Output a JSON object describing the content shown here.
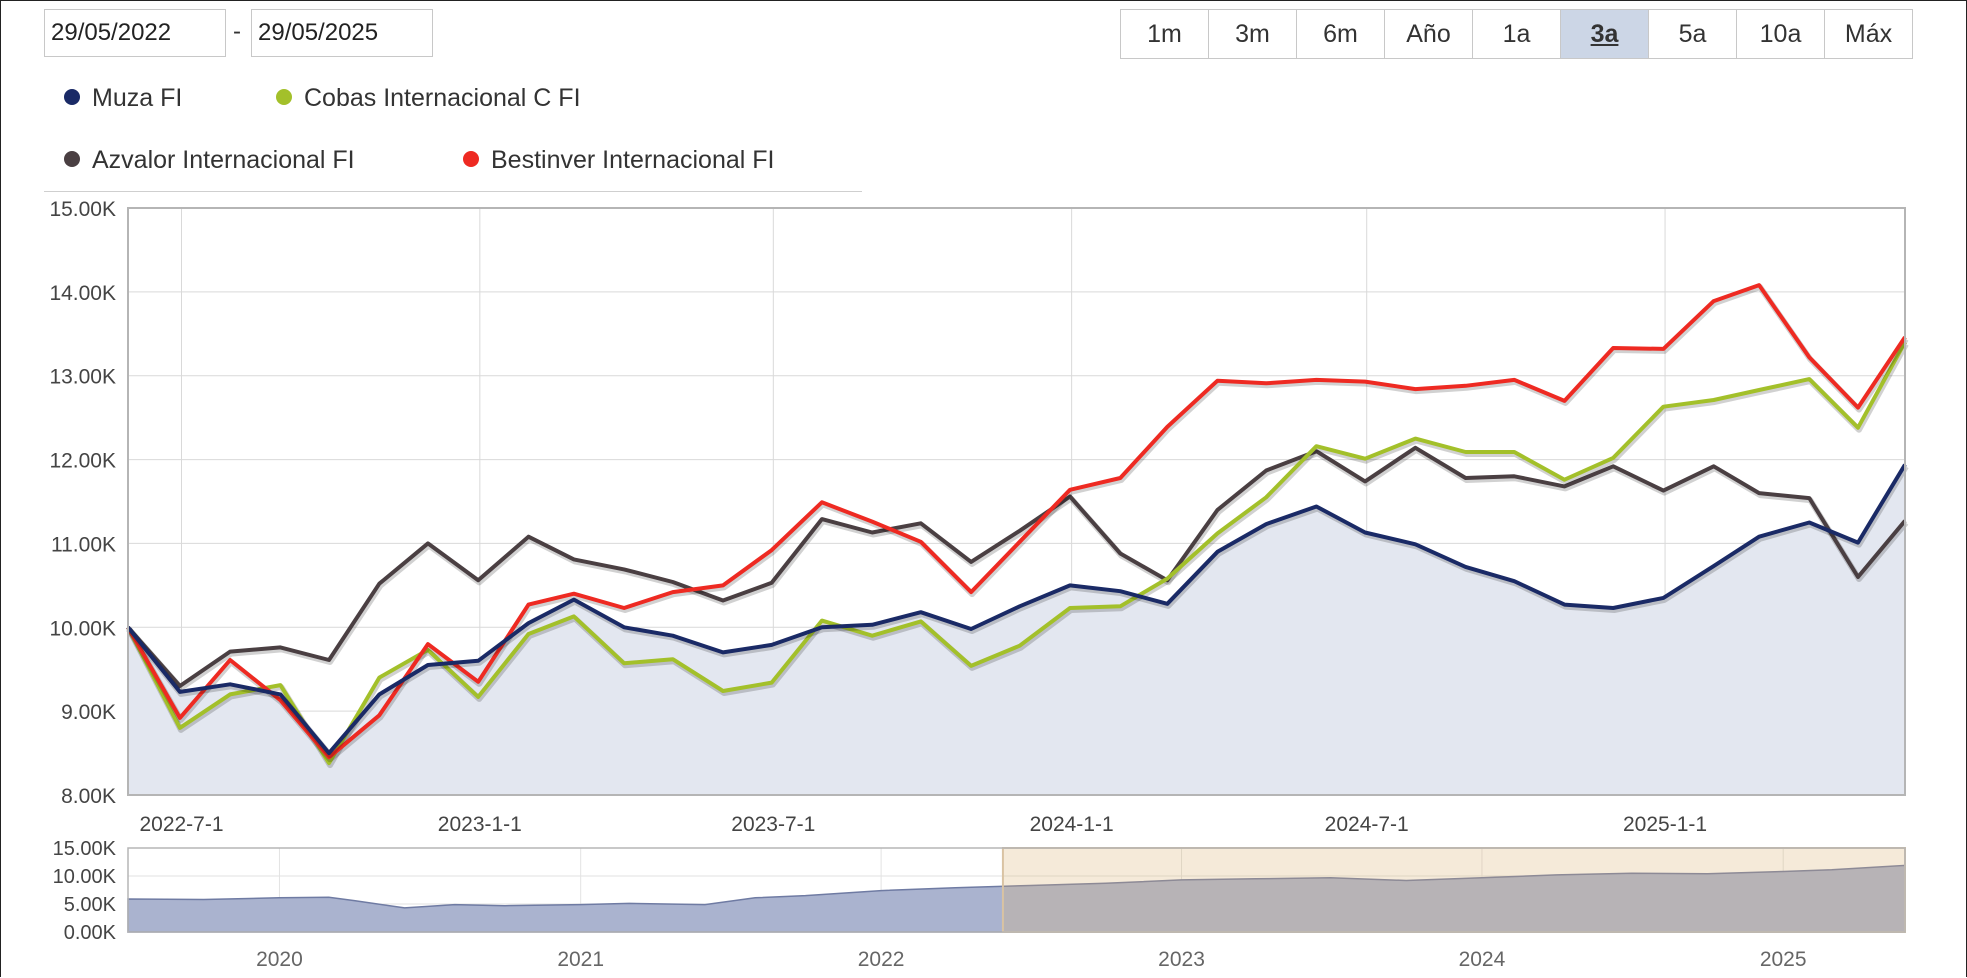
{
  "date_range": {
    "from": "29/05/2022",
    "separator": "-",
    "to": "29/05/2025"
  },
  "range_buttons": [
    {
      "label": "1m",
      "active": false
    },
    {
      "label": "3m",
      "active": false
    },
    {
      "label": "6m",
      "active": false
    },
    {
      "label": "Año",
      "active": false
    },
    {
      "label": "1a",
      "active": false
    },
    {
      "label": "3a",
      "active": true
    },
    {
      "label": "5a",
      "active": false
    },
    {
      "label": "10a",
      "active": false
    },
    {
      "label": "Máx",
      "active": false
    }
  ],
  "legend": [
    {
      "name": "Muza FI",
      "color": "#1a2a66"
    },
    {
      "name": "Cobas Internacional C FI",
      "color": "#a3c02a"
    },
    {
      "name": "Azvalor Internacional FI",
      "color": "#4a3f42"
    },
    {
      "name": "Bestinver Internacional FI",
      "color": "#ee2a22"
    }
  ],
  "chart_data": [
    {
      "type": "line",
      "title": "",
      "x_start": "2022-05-29",
      "x_end": "2025-05-29",
      "ylim": [
        8000,
        15000
      ],
      "y_ticks": [
        "8.00K",
        "9.00K",
        "10.00K",
        "11.00K",
        "12.00K",
        "13.00K",
        "14.00K",
        "15.00K"
      ],
      "x_ticks": [
        {
          "label": "2022-7-1",
          "date": "2022-07-01"
        },
        {
          "label": "2023-1-1",
          "date": "2023-01-01"
        },
        {
          "label": "2023-7-1",
          "date": "2023-07-01"
        },
        {
          "label": "2024-1-1",
          "date": "2024-01-01"
        },
        {
          "label": "2024-7-1",
          "date": "2024-07-01"
        },
        {
          "label": "2025-1-1",
          "date": "2025-01-01"
        }
      ],
      "grid": true,
      "area_fill_series": "Muza FI",
      "series": [
        {
          "name": "Muza FI",
          "color": "#1a2a66",
          "points": [
            [
              "2022-05-29",
              10000
            ],
            [
              "2022-06-30",
              9230
            ],
            [
              "2022-07-31",
              9320
            ],
            [
              "2022-08-31",
              9200
            ],
            [
              "2022-09-30",
              8500
            ],
            [
              "2022-10-31",
              9200
            ],
            [
              "2022-11-30",
              9550
            ],
            [
              "2022-12-31",
              9600
            ],
            [
              "2023-01-31",
              10050
            ],
            [
              "2023-02-28",
              10330
            ],
            [
              "2023-03-31",
              10000
            ],
            [
              "2023-04-30",
              9900
            ],
            [
              "2023-05-31",
              9700
            ],
            [
              "2023-06-30",
              9790
            ],
            [
              "2023-07-31",
              10000
            ],
            [
              "2023-08-31",
              10030
            ],
            [
              "2023-09-30",
              10180
            ],
            [
              "2023-10-31",
              9980
            ],
            [
              "2023-11-30",
              10250
            ],
            [
              "2023-12-31",
              10500
            ],
            [
              "2024-01-31",
              10430
            ],
            [
              "2024-02-29",
              10280
            ],
            [
              "2024-03-31",
              10900
            ],
            [
              "2024-04-30",
              11230
            ],
            [
              "2024-05-31",
              11440
            ],
            [
              "2024-06-30",
              11130
            ],
            [
              "2024-07-31",
              10990
            ],
            [
              "2024-08-31",
              10720
            ],
            [
              "2024-09-30",
              10550
            ],
            [
              "2024-10-31",
              10270
            ],
            [
              "2024-11-30",
              10230
            ],
            [
              "2024-12-31",
              10350
            ],
            [
              "2025-01-31",
              10730
            ],
            [
              "2025-02-28",
              11080
            ],
            [
              "2025-03-31",
              11250
            ],
            [
              "2025-04-30",
              11010
            ],
            [
              "2025-05-29",
              11940
            ]
          ]
        },
        {
          "name": "Cobas Internacional C FI",
          "color": "#a3c02a",
          "points": [
            [
              "2022-05-29",
              10000
            ],
            [
              "2022-06-30",
              8800
            ],
            [
              "2022-07-31",
              9200
            ],
            [
              "2022-08-31",
              9310
            ],
            [
              "2022-09-30",
              8380
            ],
            [
              "2022-10-31",
              9400
            ],
            [
              "2022-11-30",
              9730
            ],
            [
              "2022-12-31",
              9170
            ],
            [
              "2023-01-31",
              9920
            ],
            [
              "2023-02-28",
              10130
            ],
            [
              "2023-03-31",
              9570
            ],
            [
              "2023-04-30",
              9620
            ],
            [
              "2023-05-31",
              9240
            ],
            [
              "2023-06-30",
              9340
            ],
            [
              "2023-07-31",
              10080
            ],
            [
              "2023-08-31",
              9900
            ],
            [
              "2023-09-30",
              10070
            ],
            [
              "2023-10-31",
              9540
            ],
            [
              "2023-11-30",
              9780
            ],
            [
              "2023-12-31",
              10230
            ],
            [
              "2024-01-31",
              10250
            ],
            [
              "2024-02-29",
              10580
            ],
            [
              "2024-03-31",
              11120
            ],
            [
              "2024-04-30",
              11550
            ],
            [
              "2024-05-31",
              12160
            ],
            [
              "2024-06-30",
              12010
            ],
            [
              "2024-07-31",
              12250
            ],
            [
              "2024-08-31",
              12090
            ],
            [
              "2024-09-30",
              12090
            ],
            [
              "2024-10-31",
              11760
            ],
            [
              "2024-11-30",
              12020
            ],
            [
              "2024-12-31",
              12630
            ],
            [
              "2025-01-31",
              12710
            ],
            [
              "2025-02-28",
              12830
            ],
            [
              "2025-03-31",
              12960
            ],
            [
              "2025-04-30",
              12380
            ],
            [
              "2025-05-29",
              13400
            ]
          ]
        },
        {
          "name": "Azvalor Internacional FI",
          "color": "#4a3f42",
          "points": [
            [
              "2022-05-29",
              10000
            ],
            [
              "2022-06-30",
              9300
            ],
            [
              "2022-07-31",
              9710
            ],
            [
              "2022-08-31",
              9760
            ],
            [
              "2022-09-30",
              9610
            ],
            [
              "2022-10-31",
              10520
            ],
            [
              "2022-11-30",
              11000
            ],
            [
              "2022-12-31",
              10560
            ],
            [
              "2023-01-31",
              11080
            ],
            [
              "2023-02-28",
              10810
            ],
            [
              "2023-03-31",
              10690
            ],
            [
              "2023-04-30",
              10540
            ],
            [
              "2023-05-31",
              10320
            ],
            [
              "2023-06-30",
              10530
            ],
            [
              "2023-07-31",
              11290
            ],
            [
              "2023-08-31",
              11130
            ],
            [
              "2023-09-30",
              11240
            ],
            [
              "2023-10-31",
              10780
            ],
            [
              "2023-11-30",
              11150
            ],
            [
              "2023-12-31",
              11560
            ],
            [
              "2024-01-31",
              10880
            ],
            [
              "2024-02-29",
              10560
            ],
            [
              "2024-03-31",
              11400
            ],
            [
              "2024-04-30",
              11870
            ],
            [
              "2024-05-31",
              12100
            ],
            [
              "2024-06-30",
              11740
            ],
            [
              "2024-07-31",
              12140
            ],
            [
              "2024-08-31",
              11780
            ],
            [
              "2024-09-30",
              11800
            ],
            [
              "2024-10-31",
              11680
            ],
            [
              "2024-11-30",
              11920
            ],
            [
              "2024-12-31",
              11630
            ],
            [
              "2025-01-31",
              11920
            ],
            [
              "2025-02-28",
              11600
            ],
            [
              "2025-03-31",
              11540
            ],
            [
              "2025-04-30",
              10600
            ],
            [
              "2025-05-29",
              11270
            ]
          ]
        },
        {
          "name": "Bestinver Internacional FI",
          "color": "#ee2a22",
          "points": [
            [
              "2022-05-29",
              10000
            ],
            [
              "2022-06-30",
              8920
            ],
            [
              "2022-07-31",
              9610
            ],
            [
              "2022-08-31",
              9130
            ],
            [
              "2022-09-30",
              8450
            ],
            [
              "2022-10-31",
              8950
            ],
            [
              "2022-11-30",
              9800
            ],
            [
              "2022-12-31",
              9350
            ],
            [
              "2023-01-31",
              10270
            ],
            [
              "2023-02-28",
              10400
            ],
            [
              "2023-03-31",
              10230
            ],
            [
              "2023-04-30",
              10420
            ],
            [
              "2023-05-31",
              10500
            ],
            [
              "2023-06-30",
              10920
            ],
            [
              "2023-07-31",
              11490
            ],
            [
              "2023-08-31",
              11260
            ],
            [
              "2023-09-30",
              11020
            ],
            [
              "2023-10-31",
              10420
            ],
            [
              "2023-11-30",
              11020
            ],
            [
              "2023-12-31",
              11640
            ],
            [
              "2024-01-31",
              11780
            ],
            [
              "2024-02-29",
              12390
            ],
            [
              "2024-03-31",
              12940
            ],
            [
              "2024-04-30",
              12910
            ],
            [
              "2024-05-31",
              12950
            ],
            [
              "2024-06-30",
              12930
            ],
            [
              "2024-07-31",
              12840
            ],
            [
              "2024-08-31",
              12880
            ],
            [
              "2024-09-30",
              12950
            ],
            [
              "2024-10-31",
              12700
            ],
            [
              "2024-11-30",
              13330
            ],
            [
              "2024-12-31",
              13320
            ],
            [
              "2025-01-31",
              13890
            ],
            [
              "2025-02-28",
              14080
            ],
            [
              "2025-03-31",
              13220
            ],
            [
              "2025-04-30",
              12620
            ],
            [
              "2025-05-29",
              13460
            ]
          ]
        }
      ]
    },
    {
      "type": "area",
      "title": "",
      "x_start": "2019-07-01",
      "x_end": "2025-05-29",
      "ylim": [
        0,
        15000
      ],
      "y_ticks": [
        "0.00K",
        "5.00K",
        "10.00K",
        "15.00K"
      ],
      "x_ticks": [
        {
          "label": "2020",
          "date": "2020-01-01"
        },
        {
          "label": "2021",
          "date": "2021-01-01"
        },
        {
          "label": "2022",
          "date": "2022-01-01"
        },
        {
          "label": "2023",
          "date": "2023-01-01"
        },
        {
          "label": "2024",
          "date": "2024-01-01"
        },
        {
          "label": "2025",
          "date": "2025-01-01"
        }
      ],
      "selected_range": [
        "2022-05-29",
        "2025-05-29"
      ],
      "series": [
        {
          "name": "Muza FI",
          "points": [
            [
              "2019-07-01",
              5900
            ],
            [
              "2019-10-01",
              5800
            ],
            [
              "2020-01-01",
              6100
            ],
            [
              "2020-03-01",
              6200
            ],
            [
              "2020-04-01",
              5600
            ],
            [
              "2020-06-01",
              4300
            ],
            [
              "2020-08-01",
              4900
            ],
            [
              "2020-10-01",
              4700
            ],
            [
              "2020-12-31",
              4900
            ],
            [
              "2021-03-01",
              5100
            ],
            [
              "2021-06-01",
              4900
            ],
            [
              "2021-08-01",
              6100
            ],
            [
              "2021-10-01",
              6500
            ],
            [
              "2022-01-01",
              7400
            ],
            [
              "2022-04-01",
              7900
            ],
            [
              "2022-07-01",
              8300
            ],
            [
              "2022-10-01",
              8700
            ],
            [
              "2023-01-01",
              9300
            ],
            [
              "2023-04-01",
              9500
            ],
            [
              "2023-07-01",
              9700
            ],
            [
              "2023-10-01",
              9200
            ],
            [
              "2024-01-01",
              9700
            ],
            [
              "2024-04-01",
              10200
            ],
            [
              "2024-07-01",
              10500
            ],
            [
              "2024-10-01",
              10400
            ],
            [
              "2025-01-01",
              10800
            ],
            [
              "2025-03-01",
              11100
            ],
            [
              "2025-05-29",
              11900
            ]
          ]
        }
      ]
    }
  ]
}
